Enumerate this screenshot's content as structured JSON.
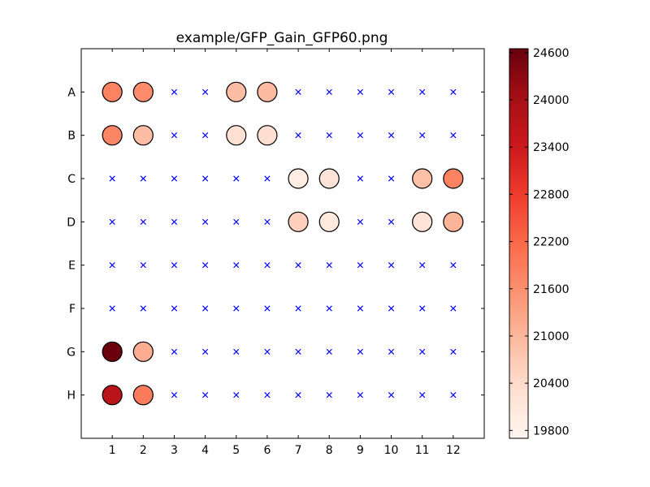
{
  "chart_data": {
    "type": "scatter",
    "title": "example/GFP_Gain_GFP60.png",
    "xlabel": "",
    "ylabel": "",
    "x_ticks": [
      "1",
      "2",
      "3",
      "4",
      "5",
      "6",
      "7",
      "8",
      "9",
      "10",
      "11",
      "12"
    ],
    "y_ticks": [
      "A",
      "B",
      "C",
      "D",
      "E",
      "F",
      "G",
      "H"
    ],
    "xlim": [
      0,
      13
    ],
    "ylim": [
      0,
      9
    ],
    "empty_marker": "x",
    "empty_color": "#0000ff",
    "colormap": "Reds",
    "colorbar": {
      "min": 19700,
      "max": 24650,
      "ticks": [
        19800,
        20400,
        21000,
        21600,
        22200,
        22800,
        23400,
        24000,
        24600
      ]
    },
    "wells": [
      {
        "row": "A",
        "col": 1,
        "value": 21800
      },
      {
        "row": "A",
        "col": 2,
        "value": 21650
      },
      {
        "row": "A",
        "col": 5,
        "value": 20900
      },
      {
        "row": "A",
        "col": 6,
        "value": 20950
      },
      {
        "row": "B",
        "col": 1,
        "value": 21750
      },
      {
        "row": "B",
        "col": 2,
        "value": 20900
      },
      {
        "row": "B",
        "col": 5,
        "value": 20300
      },
      {
        "row": "B",
        "col": 6,
        "value": 20350
      },
      {
        "row": "C",
        "col": 7,
        "value": 19950
      },
      {
        "row": "C",
        "col": 8,
        "value": 20200
      },
      {
        "row": "C",
        "col": 11,
        "value": 20850
      },
      {
        "row": "C",
        "col": 12,
        "value": 21800
      },
      {
        "row": "D",
        "col": 7,
        "value": 20600
      },
      {
        "row": "D",
        "col": 8,
        "value": 20050
      },
      {
        "row": "D",
        "col": 11,
        "value": 20200
      },
      {
        "row": "D",
        "col": 12,
        "value": 21050
      },
      {
        "row": "G",
        "col": 1,
        "value": 24600
      },
      {
        "row": "G",
        "col": 2,
        "value": 21150
      },
      {
        "row": "H",
        "col": 1,
        "value": 23700
      },
      {
        "row": "H",
        "col": 2,
        "value": 21900
      }
    ]
  }
}
